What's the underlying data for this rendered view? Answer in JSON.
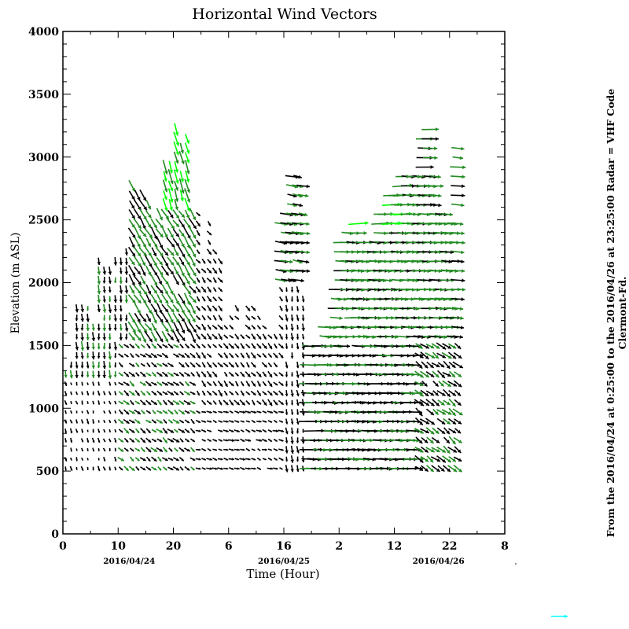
{
  "chart_data": {
    "type": "vector",
    "title": "Horizontal Wind Vectors",
    "xlabel": "Time (Hour)",
    "ylabel": "Elevation (m ASL)",
    "xlim": [
      0,
      80
    ],
    "ylim": [
      0,
      4000
    ],
    "x_ticks": [
      0,
      10,
      20,
      30,
      40,
      50,
      60,
      70,
      80
    ],
    "x_tick_labels": [
      "0",
      "10",
      "20",
      "6",
      "16",
      "2",
      "12",
      "22",
      "8"
    ],
    "y_ticks": [
      0,
      500,
      1000,
      1500,
      2000,
      2500,
      3000,
      3500,
      4000
    ],
    "y_tick_labels": [
      "0",
      "500",
      "1000",
      "1500",
      "2000",
      "2500",
      "3000",
      "3500",
      "4000"
    ],
    "date_labels": [
      {
        "hour": 12,
        "text": "2016/04/24"
      },
      {
        "hour": 40,
        "text": "2016/04/25"
      },
      {
        "hour": 68,
        "text": "2016/04/26"
      }
    ],
    "side_note_line1": "From the 2016/04/24 at  0:25:00 to the 2016/04/26 at 23:25:00 Radar = VHF Code",
    "side_note_line2": "Clermont-Fd.",
    "reference_vector": {
      "speed_ms": 7,
      "color": "#00ffff"
    },
    "colors": {
      "low": "#000000",
      "mid": "#228b22",
      "high": "#00ff00"
    },
    "elevation_step_m": 75,
    "columns": [
      [
        0,
        520,
        1300
      ],
      [
        1,
        520,
        1350
      ],
      [
        2,
        520,
        1850
      ],
      [
        3,
        520,
        1850
      ],
      [
        4,
        520,
        1800
      ],
      [
        5,
        520,
        1700
      ],
      [
        6,
        520,
        2200
      ],
      [
        7,
        520,
        2100
      ],
      [
        8,
        520,
        2100
      ],
      [
        9,
        520,
        2200
      ],
      [
        10,
        520,
        2200
      ],
      [
        11,
        520,
        2300
      ],
      [
        12,
        520,
        2800
      ],
      [
        13,
        520,
        2750
      ],
      [
        14,
        520,
        2700
      ],
      [
        15,
        520,
        2650
      ],
      [
        16,
        520,
        2500
      ],
      [
        17,
        520,
        2550
      ],
      [
        18,
        520,
        3000
      ],
      [
        19,
        520,
        3050
      ],
      [
        20,
        520,
        3250
      ],
      [
        21,
        520,
        3250
      ],
      [
        22,
        520,
        3200
      ],
      [
        23,
        520,
        2600
      ],
      [
        24,
        520,
        2550
      ],
      [
        25,
        520,
        2300
      ],
      [
        26,
        520,
        2500
      ],
      [
        27,
        520,
        2300
      ],
      [
        28,
        520,
        2200
      ],
      [
        29,
        520,
        1700
      ],
      [
        30,
        520,
        1800
      ],
      [
        31,
        520,
        1850
      ],
      [
        32,
        520,
        1700
      ],
      [
        33,
        520,
        1800
      ],
      [
        34,
        520,
        1800
      ],
      [
        35,
        520,
        1750
      ],
      [
        36,
        520,
        1700
      ],
      [
        37,
        520,
        1650
      ],
      [
        38,
        520,
        1600
      ],
      [
        39,
        520,
        2500
      ],
      [
        40,
        520,
        2600
      ],
      [
        41,
        520,
        2850
      ],
      [
        42,
        520,
        2850
      ],
      [
        43,
        520,
        2800
      ],
      [
        44,
        520,
        1500
      ],
      [
        45,
        520,
        1500
      ],
      [
        46,
        520,
        1550
      ],
      [
        47,
        520,
        1650
      ],
      [
        48,
        520,
        1650
      ],
      [
        49,
        520,
        2000
      ],
      [
        50,
        520,
        2350
      ],
      [
        51,
        520,
        2400
      ],
      [
        52,
        520,
        2450
      ],
      [
        53,
        520,
        2500
      ],
      [
        54,
        520,
        2350
      ],
      [
        55,
        520,
        2300
      ],
      [
        56,
        520,
        2350
      ],
      [
        57,
        520,
        2550
      ],
      [
        58,
        520,
        2600
      ],
      [
        59,
        520,
        2700
      ],
      [
        60,
        520,
        2750
      ],
      [
        61,
        520,
        2850
      ],
      [
        62,
        520,
        2900
      ],
      [
        63,
        520,
        2900
      ],
      [
        64,
        520,
        2900
      ],
      [
        65,
        520,
        3250
      ],
      [
        66,
        520,
        3250
      ],
      [
        67,
        520,
        2900
      ],
      [
        68,
        520,
        2600
      ],
      [
        69,
        520,
        2550
      ],
      [
        70,
        520,
        2500
      ],
      [
        71,
        520,
        3100
      ]
    ],
    "regimes": [
      {
        "t": [
          0,
          80
        ],
        "z": [
          0,
          5000
        ],
        "u": 0.3,
        "v": -2.5,
        "colors": [
          "#000000"
        ]
      },
      {
        "t": [
          0,
          12
        ],
        "z": [
          500,
          1200
        ],
        "u": 0.4,
        "v": -1.5,
        "colors": [
          "#000000"
        ]
      },
      {
        "t": [
          0,
          12
        ],
        "z": [
          1200,
          3100
        ],
        "u": 0.2,
        "v": -3.0,
        "colors": [
          "#000000",
          "#000000",
          "#228b22"
        ]
      },
      {
        "t": [
          10,
          24
        ],
        "z": [
          500,
          1500
        ],
        "u": 2.0,
        "v": -1.6,
        "colors": [
          "#000000",
          "#000000",
          "#228b22"
        ]
      },
      {
        "t": [
          12,
          24
        ],
        "z": [
          1500,
          3400
        ],
        "u": 2.5,
        "v": -4.0,
        "colors": [
          "#228b22",
          "#228b22",
          "#000000"
        ]
      },
      {
        "t": [
          18,
          23
        ],
        "z": [
          2600,
          3400
        ],
        "u": 1.5,
        "v": -5.0,
        "colors": [
          "#228b22",
          "#00ff00"
        ]
      },
      {
        "t": [
          24,
          40
        ],
        "z": [
          500,
          1000
        ],
        "u": 2.0,
        "v": -0.6,
        "colors": [
          "#000000"
        ]
      },
      {
        "t": [
          24,
          40
        ],
        "z": [
          1000,
          2600
        ],
        "u": 1.6,
        "v": -2.0,
        "colors": [
          "#000000"
        ]
      },
      {
        "t": [
          38,
          44
        ],
        "z": [
          2000,
          2900
        ],
        "u": 5.0,
        "v": -0.8,
        "colors": [
          "#228b22",
          "#000000"
        ]
      },
      {
        "t": [
          44,
          72
        ],
        "z": [
          500,
          1500
        ],
        "u": 7.0,
        "v": -0.2,
        "colors": [
          "#000000",
          "#000000",
          "#228b22"
        ]
      },
      {
        "t": [
          47,
          72
        ],
        "z": [
          1500,
          3400
        ],
        "u": 6.0,
        "v": -0.3,
        "colors": [
          "#228b22",
          "#228b22",
          "#000000"
        ]
      },
      {
        "t": [
          50,
          62
        ],
        "z": [
          2400,
          3000
        ],
        "u": 7.0,
        "v": 0.3,
        "colors": [
          "#228b22",
          "#00ff00"
        ]
      },
      {
        "t": [
          64,
          72
        ],
        "z": [
          500,
          1500
        ],
        "u": 3.2,
        "v": -2.4,
        "colors": [
          "#000000",
          "#000000",
          "#228b22"
        ]
      }
    ]
  }
}
